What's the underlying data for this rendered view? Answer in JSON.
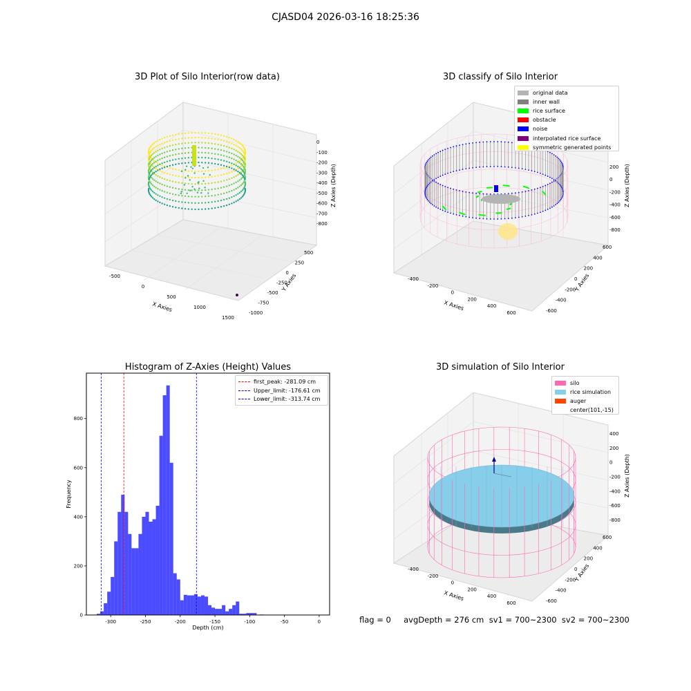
{
  "suptitle": "CJASD04 2026-03-16 18:25:36",
  "status_text": "flag = 0     avgDepth = 276 cm  sv1 = 700~2300  sv2 = 700~2300",
  "panels": {
    "raw": {
      "title": "3D Plot of Silo Interior(row data)",
      "x_label": "X Axies",
      "y_label": "Y Axies",
      "z_label": "Z Axies (Depth)",
      "x_ticks": [
        "-500",
        "0",
        "500",
        "1000",
        "1500"
      ],
      "y_ticks": [
        "500",
        "250",
        "0",
        "-250",
        "-500",
        "-750",
        "-1000"
      ],
      "z_ticks": [
        "0",
        "-100",
        "-200",
        "-300",
        "-400",
        "-500",
        "-600",
        "-700",
        "-800"
      ]
    },
    "classify": {
      "title": "3D classify of Silo Interior",
      "x_label": "X Axies",
      "y_label": "Y Axies",
      "z_label": "Z Axies (Depth)",
      "x_ticks": [
        "-400",
        "-200",
        "0",
        "200",
        "400",
        "600"
      ],
      "y_ticks": [
        "600",
        "400",
        "200",
        "0",
        "-200",
        "-400",
        "-600"
      ],
      "z_ticks": [
        "200",
        "0",
        "-200",
        "-400",
        "-600",
        "-800"
      ],
      "z_top_tick": "0",
      "legend": [
        {
          "label": "original data",
          "color": "#b4b4b4"
        },
        {
          "label": "inner wall",
          "color": "#808080"
        },
        {
          "label": "rice surface",
          "color": "#00ff00"
        },
        {
          "label": "obstacle",
          "color": "#ff0000"
        },
        {
          "label": "noise",
          "color": "#0000ff"
        },
        {
          "label": "interpolated rice surface",
          "color": "#800080"
        },
        {
          "label": "symmetric generated points",
          "color": "#ffff00"
        }
      ]
    },
    "simulation": {
      "title": "3D simulation of Silo Interior",
      "x_label": "X Axies",
      "y_label": "Y Axies",
      "z_label": "Z Axies (Depth)",
      "x_ticks": [
        "-400",
        "-200",
        "0",
        "200",
        "400",
        "600"
      ],
      "y_ticks": [
        "600",
        "400",
        "200",
        "0",
        "-200",
        "-400",
        "-600"
      ],
      "z_ticks": [
        "400",
        "200",
        "0",
        "-200",
        "-400",
        "-600",
        "-800"
      ],
      "legend": [
        {
          "label": "silo",
          "color": "#ff69b4"
        },
        {
          "label": "rice simulation",
          "color": "#87ceeb"
        },
        {
          "label": "auger",
          "color": "#ff4500"
        },
        {
          "label": "center(101,-15)",
          "color": ""
        }
      ]
    }
  },
  "chart_data": {
    "type": "bar",
    "title": "Histogram of Z-Axies (Height) Values",
    "xlabel": "Depth (cm)",
    "ylabel": "Frequency",
    "xlim": [
      -335,
      15
    ],
    "ylim": [
      0,
      985
    ],
    "x_ticks": [
      -300,
      -250,
      -200,
      -150,
      -100,
      -50,
      0
    ],
    "y_ticks": [
      0,
      200,
      400,
      600,
      800
    ],
    "bar_color": "#0000ff",
    "bin_width": 5,
    "bin_starts": [
      -320,
      -315,
      -310,
      -305,
      -300,
      -295,
      -290,
      -285,
      -280,
      -275,
      -270,
      -265,
      -260,
      -255,
      -250,
      -245,
      -240,
      -235,
      -230,
      -225,
      -220,
      -215,
      -210,
      -205,
      -200,
      -195,
      -190,
      -185,
      -180,
      -175,
      -170,
      -165,
      -160,
      -155,
      -150,
      -145,
      -140,
      -135,
      -130,
      -125,
      -120,
      -115,
      -110,
      -105,
      -100,
      -95,
      -90,
      -85,
      -80,
      -75,
      -70,
      -65,
      -60,
      -55,
      -50,
      -45,
      -40,
      -35,
      -30,
      -25,
      -20,
      -15,
      -10,
      -5
    ],
    "counts": [
      5,
      15,
      48,
      95,
      155,
      300,
      420,
      490,
      420,
      330,
      272,
      272,
      330,
      400,
      420,
      380,
      390,
      445,
      730,
      895,
      935,
      620,
      170,
      145,
      60,
      82,
      80,
      80,
      85,
      75,
      80,
      75,
      40,
      30,
      25,
      25,
      40,
      15,
      25,
      40,
      55,
      5,
      5,
      8,
      8,
      8,
      0,
      2,
      0,
      0,
      0,
      0,
      0,
      0,
      0,
      0,
      0,
      0,
      0,
      0,
      0,
      0,
      0,
      0
    ],
    "vlines": [
      {
        "label": "first_peak: -281.09 cm",
        "x": -281.09,
        "color": "#ff0000"
      },
      {
        "label": "Upper_limit: -176.61 cm",
        "x": -176.61,
        "color": "#0000ff"
      },
      {
        "label": "Lower_limit: -313.74 cm",
        "x": -313.74,
        "color": "#0000ff"
      }
    ]
  }
}
